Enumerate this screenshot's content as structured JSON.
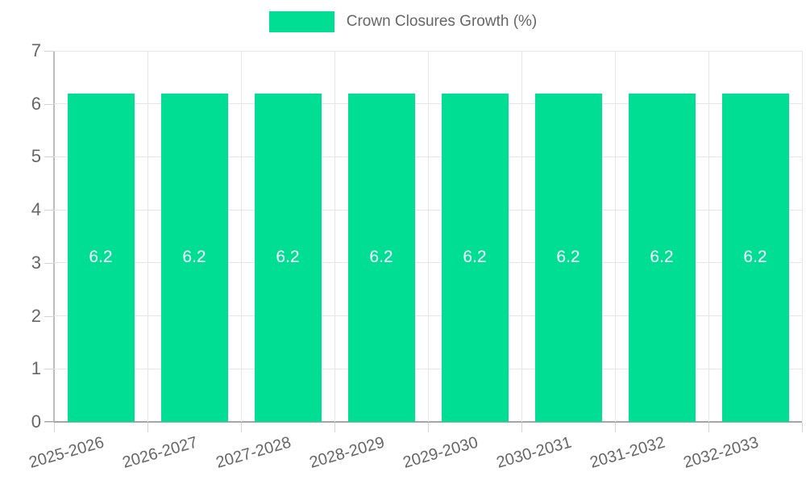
{
  "legend": {
    "label": "Crown Closures Growth (%)",
    "swatch_color": "#00DE94"
  },
  "chart_data": {
    "type": "bar",
    "title": "Crown Closures Growth (%)",
    "categories": [
      "2025-2026",
      "2026-2027",
      "2027-2028",
      "2028-2029",
      "2029-2030",
      "2030-2031",
      "2031-2032",
      "2032-2033"
    ],
    "values": [
      6.2,
      6.2,
      6.2,
      6.2,
      6.2,
      6.2,
      6.2,
      6.2
    ],
    "bar_labels": [
      "6.2",
      "6.2",
      "6.2",
      "6.2",
      "6.2",
      "6.2",
      "6.2",
      "6.2"
    ],
    "xlabel": "",
    "ylabel": "",
    "ylim": [
      0,
      7
    ],
    "yticks": [
      0,
      1,
      2,
      3,
      4,
      5,
      6,
      7
    ],
    "grid": true,
    "legend_position": "top",
    "colors": {
      "bar": "#00DE94",
      "bar_label": "#ffffff",
      "axis_text": "#666666",
      "gridline": "#e6e6e6",
      "axis_line_x": "#a6a6a6",
      "axis_line_y": "#bdbdbd"
    }
  }
}
